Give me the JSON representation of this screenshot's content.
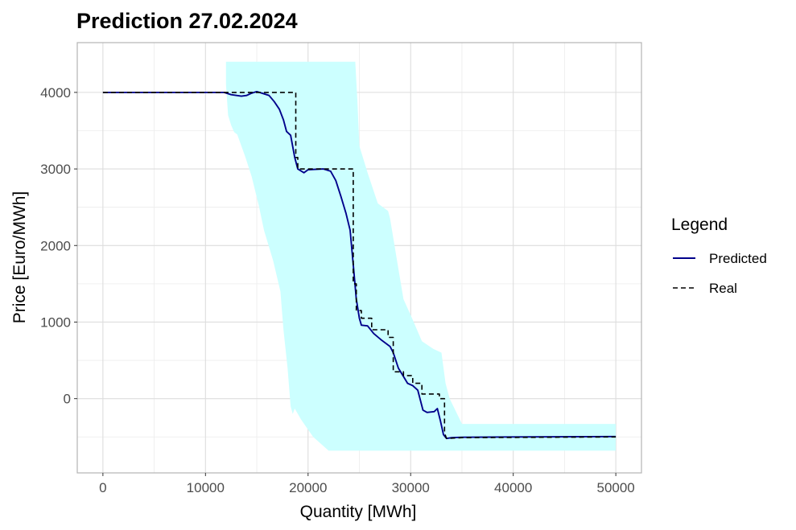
{
  "chart_data": {
    "type": "line",
    "title": "Prediction 27.02.2024",
    "xlabel": "Quantity [MWh]",
    "ylabel": "Price [Euro/MWh]",
    "xlim": [
      -2500,
      52500
    ],
    "ylim": [
      -970,
      4650
    ],
    "x_ticks": [
      0,
      10000,
      20000,
      30000,
      40000,
      50000
    ],
    "y_ticks": [
      0,
      1000,
      2000,
      3000,
      4000
    ],
    "grid": true,
    "legend": {
      "title": "Legend",
      "position": "right",
      "entries": [
        {
          "label": "Predicted",
          "style": "solid",
          "color": "#00008b"
        },
        {
          "label": "Real",
          "style": "dashed",
          "color": "#000000"
        }
      ]
    },
    "colors": {
      "band": "#ccffff",
      "predicted": "#00008b",
      "real": "#000000",
      "grid": "#dddddd",
      "panel_border": "#b3b3b3"
    },
    "series": [
      {
        "name": "Predicted",
        "style": "solid",
        "points": [
          [
            0,
            4000
          ],
          [
            11800,
            4000
          ],
          [
            12500,
            3970
          ],
          [
            13500,
            3950
          ],
          [
            14000,
            3960
          ],
          [
            14500,
            3990
          ],
          [
            15000,
            4010
          ],
          [
            15500,
            3990
          ],
          [
            16200,
            3960
          ],
          [
            16700,
            3880
          ],
          [
            17200,
            3780
          ],
          [
            17600,
            3640
          ],
          [
            17900,
            3490
          ],
          [
            18300,
            3440
          ],
          [
            18700,
            3150
          ],
          [
            19000,
            3000
          ],
          [
            19600,
            2950
          ],
          [
            20000,
            2990
          ],
          [
            21500,
            3000
          ],
          [
            22200,
            2970
          ],
          [
            22700,
            2850
          ],
          [
            23200,
            2640
          ],
          [
            23700,
            2420
          ],
          [
            24100,
            2200
          ],
          [
            24400,
            1750
          ],
          [
            24700,
            1300
          ],
          [
            25000,
            1050
          ],
          [
            25200,
            960
          ],
          [
            25800,
            950
          ],
          [
            26400,
            850
          ],
          [
            27200,
            760
          ],
          [
            28000,
            680
          ],
          [
            28300,
            600
          ],
          [
            28800,
            400
          ],
          [
            29300,
            290
          ],
          [
            29700,
            200
          ],
          [
            30200,
            170
          ],
          [
            30700,
            110
          ],
          [
            31200,
            -150
          ],
          [
            31600,
            -180
          ],
          [
            32300,
            -170
          ],
          [
            32600,
            -130
          ],
          [
            32900,
            -290
          ],
          [
            33200,
            -470
          ],
          [
            33500,
            -520
          ],
          [
            34000,
            -510
          ],
          [
            35000,
            -505
          ],
          [
            40000,
            -500
          ],
          [
            50000,
            -495
          ]
        ]
      },
      {
        "name": "Real",
        "style": "dashed",
        "points": [
          [
            0,
            4000
          ],
          [
            18800,
            4000
          ],
          [
            18800,
            3150
          ],
          [
            19000,
            3150
          ],
          [
            19000,
            3000
          ],
          [
            24400,
            3000
          ],
          [
            24400,
            1500
          ],
          [
            24700,
            1500
          ],
          [
            24700,
            1150
          ],
          [
            25200,
            1150
          ],
          [
            25200,
            1050
          ],
          [
            26200,
            1050
          ],
          [
            26200,
            900
          ],
          [
            27800,
            900
          ],
          [
            27800,
            800
          ],
          [
            28300,
            800
          ],
          [
            28300,
            350
          ],
          [
            29300,
            350
          ],
          [
            29300,
            300
          ],
          [
            30200,
            300
          ],
          [
            30200,
            200
          ],
          [
            31100,
            200
          ],
          [
            31100,
            60
          ],
          [
            32800,
            60
          ],
          [
            32800,
            0
          ],
          [
            33300,
            0
          ],
          [
            33300,
            -450
          ],
          [
            33500,
            -520
          ],
          [
            35000,
            -510
          ],
          [
            50000,
            -500
          ]
        ]
      }
    ],
    "band": {
      "name": "Prediction interval",
      "upper": [
        [
          12000,
          4400
        ],
        [
          24600,
          4400
        ],
        [
          24800,
          3900
        ],
        [
          25000,
          3300
        ],
        [
          25800,
          2950
        ],
        [
          26800,
          2550
        ],
        [
          27800,
          2450
        ],
        [
          28000,
          2350
        ],
        [
          28800,
          1700
        ],
        [
          29300,
          1300
        ],
        [
          30200,
          1030
        ],
        [
          31100,
          750
        ],
        [
          32200,
          650
        ],
        [
          33000,
          600
        ],
        [
          33400,
          200
        ],
        [
          33800,
          0
        ],
        [
          35000,
          -330
        ],
        [
          50000,
          -330
        ]
      ],
      "lower": [
        [
          50000,
          -680
        ],
        [
          22000,
          -680
        ],
        [
          20500,
          -500
        ],
        [
          19300,
          -270
        ],
        [
          18700,
          -130
        ],
        [
          18500,
          -200
        ],
        [
          18300,
          -100
        ],
        [
          18000,
          400
        ],
        [
          17600,
          900
        ],
        [
          17300,
          1400
        ],
        [
          16600,
          1800
        ],
        [
          15700,
          2200
        ],
        [
          15200,
          2520
        ],
        [
          14500,
          2900
        ],
        [
          13900,
          3150
        ],
        [
          13500,
          3300
        ],
        [
          13100,
          3450
        ],
        [
          12800,
          3480
        ],
        [
          12500,
          3570
        ],
        [
          12200,
          3700
        ],
        [
          12000,
          4100
        ]
      ]
    }
  }
}
